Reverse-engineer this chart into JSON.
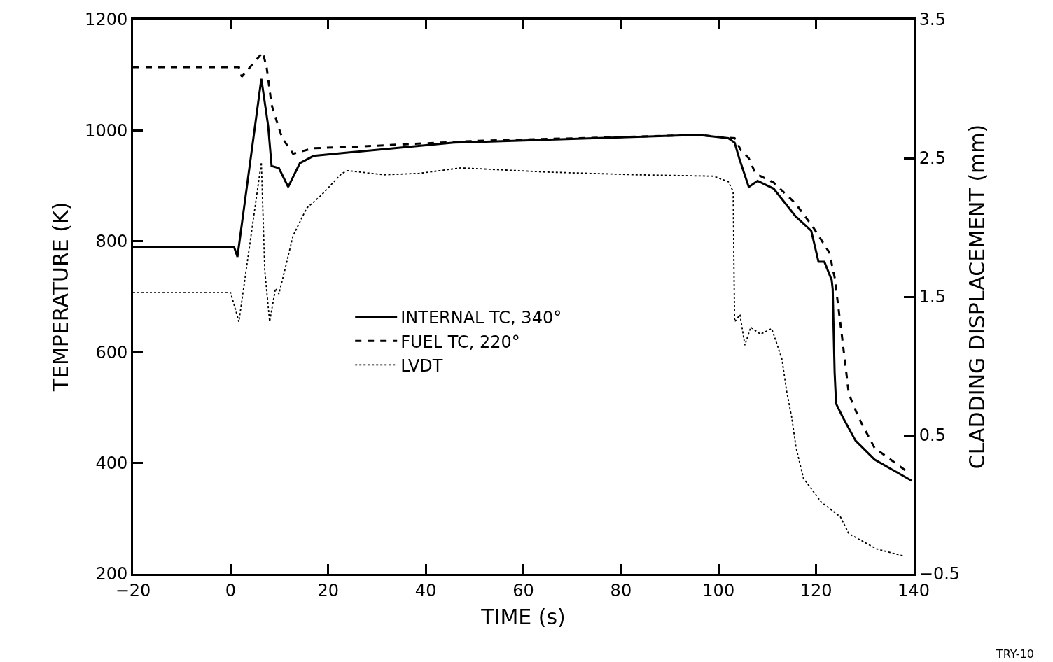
{
  "chart_data": {
    "type": "line",
    "xlabel": "TIME (s)",
    "ylabel": "TEMPERATURE (K)",
    "y2label": "CLADDING DISPLACEMENT (mm)",
    "xlim": [
      -20,
      140
    ],
    "xticks": [
      -20,
      0,
      20,
      40,
      60,
      80,
      100,
      120,
      140
    ],
    "ylim": [
      200,
      1200
    ],
    "yticks": [
      200,
      400,
      600,
      800,
      1000,
      1200
    ],
    "y2lim": [
      -0.5,
      3.5
    ],
    "y2ticks": [
      -0.5,
      0.5,
      1.5,
      2.5,
      3.5
    ],
    "legend": "center",
    "marker": "none",
    "annotations": [
      "TRY-10"
    ],
    "series": [
      {
        "name": "INTERNAL TC, 340°",
        "color": "#000000",
        "line_style": "solid",
        "x": [
          -20,
          0.7,
          1.4,
          6.3,
          7.7,
          8.4,
          9.9,
          11.8,
          14.2,
          17,
          24,
          45.8,
          50,
          95.8,
          102,
          103.3,
          104.3,
          106.2,
          108,
          111.3,
          115.8,
          119,
          120.5,
          121.7,
          123.2,
          123.4,
          123.8,
          124.1,
          125.5,
          128.1,
          132,
          139.6
        ],
        "values": [
          790,
          790,
          772,
          1093,
          1008,
          936,
          932,
          898,
          941,
          954,
          960,
          978,
          979,
          992,
          986,
          978,
          948,
          898,
          909,
          895,
          845,
          819,
          763,
          763,
          730,
          714,
          563,
          507,
          482,
          440,
          406,
          368
        ]
      },
      {
        "name": "FUEL TC, 220°",
        "color": "#000000",
        "line_style": "dashed",
        "x": [
          -20,
          1.7,
          2.3,
          6.6,
          7.4,
          8.4,
          9.9,
          10.6,
          12.8,
          17,
          24,
          50,
          95.8,
          103.3,
          104.6,
          106.2,
          107.6,
          111.3,
          115.8,
          119.5,
          122.7,
          123.8,
          124.1,
          125.3,
          126.7,
          128.7,
          132,
          139.2
        ],
        "values": [
          1114,
          1114,
          1097,
          1141,
          1113,
          1046,
          1004,
          986,
          958,
          968,
          970,
          981,
          992,
          986,
          964,
          950,
          922,
          906,
          868,
          824,
          780,
          735,
          714,
          629,
          525,
          482,
          427,
          381
        ]
      },
      {
        "name": "LVDT",
        "color": "#000000",
        "line_style": "dotted",
        "axis": "y2",
        "x": [
          -20,
          0,
          1.7,
          6.3,
          7,
          8,
          9.2,
          9.9,
          11.3,
          12.8,
          15.6,
          18.5,
          22.8,
          24,
          31.4,
          38.6,
          47.2,
          64.5,
          83.3,
          99,
          102,
          103,
          103.2,
          103.3,
          104.4,
          105.4,
          106.6,
          108.6,
          110.9,
          113,
          114,
          115,
          115.9,
          117.4,
          121,
          125,
          126.7,
          132.4,
          137.8
        ],
        "values": [
          1.53,
          1.53,
          1.32,
          2.47,
          1.69,
          1.32,
          1.56,
          1.52,
          1.72,
          1.94,
          2.14,
          2.23,
          2.39,
          2.41,
          2.38,
          2.39,
          2.43,
          2.4,
          2.38,
          2.37,
          2.33,
          2.26,
          1.6,
          1.32,
          1.37,
          1.15,
          1.28,
          1.23,
          1.27,
          1.05,
          0.81,
          0.63,
          0.41,
          0.19,
          0.02,
          -0.09,
          -0.21,
          -0.32,
          -0.37
        ]
      }
    ]
  }
}
